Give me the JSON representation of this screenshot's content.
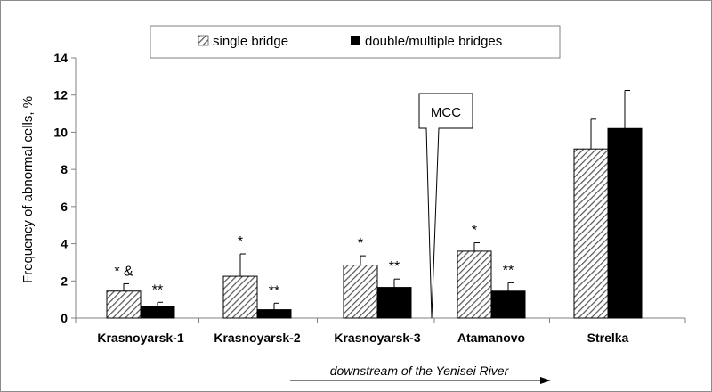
{
  "chart_data": {
    "type": "bar",
    "categories": [
      "Krasnoyarsk-1",
      "Krasnoyarsk-2",
      "Krasnoyarsk-3",
      "Atamanovo",
      "Strelka"
    ],
    "series": [
      {
        "name": "single bridge",
        "values": [
          1.45,
          2.25,
          2.85,
          3.6,
          9.1
        ],
        "errors": [
          0.4,
          1.2,
          0.5,
          0.45,
          1.6
        ],
        "annotations": [
          "* &",
          "*",
          "*",
          "*",
          ""
        ]
      },
      {
        "name": "double/multiple bridges",
        "values": [
          0.6,
          0.45,
          1.65,
          1.45,
          10.2
        ],
        "errors": [
          0.25,
          0.35,
          0.45,
          0.45,
          2.05
        ],
        "annotations": [
          "**",
          "**",
          "**",
          "**",
          ""
        ]
      }
    ],
    "ylabel": "Frequency of  abnormal cells, %",
    "ylim": [
      0,
      14
    ],
    "yticks": [
      "0",
      "2",
      "4",
      "6",
      "8",
      "10",
      "12",
      "14"
    ],
    "ytick_values": [
      0,
      2,
      4,
      6,
      8,
      10,
      12,
      14
    ],
    "legend_position": "top",
    "callout": "MCC",
    "footnote": "downstream of the Yenisei River",
    "colors": {
      "single": "#d9d9d9",
      "double": "#000000",
      "axis": "#808080"
    }
  }
}
